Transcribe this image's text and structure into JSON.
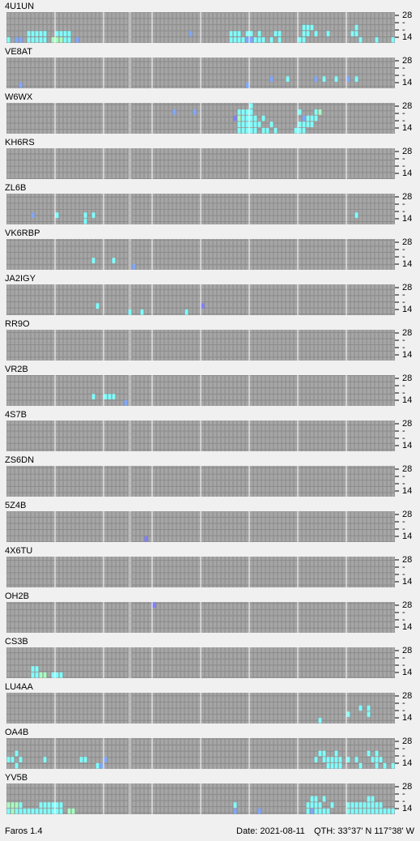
{
  "palette": {
    "c": "#80ffff",
    "b": "#80a8ff",
    "g": "#a8ffc0",
    "p": "#8080ff"
  },
  "band_labels": [
    "28",
    "-",
    "-",
    "14"
  ],
  "stations": [
    {
      "name": "4U1UN",
      "hits": [
        [
          5,
          3,
          "c"
        ],
        [
          6,
          3,
          "c"
        ],
        [
          7,
          3,
          "c"
        ],
        [
          8,
          3,
          "c"
        ],
        [
          9,
          3,
          "c"
        ],
        [
          12,
          3,
          "c"
        ],
        [
          13,
          3,
          "c"
        ],
        [
          14,
          3,
          "c"
        ],
        [
          15,
          3,
          "c"
        ],
        [
          0,
          4,
          "c"
        ],
        [
          2,
          4,
          "b"
        ],
        [
          3,
          4,
          "b"
        ],
        [
          5,
          4,
          "c"
        ],
        [
          6,
          4,
          "c"
        ],
        [
          7,
          4,
          "c"
        ],
        [
          8,
          4,
          "c"
        ],
        [
          9,
          4,
          "c"
        ],
        [
          11,
          4,
          "g"
        ],
        [
          12,
          4,
          "g"
        ],
        [
          13,
          4,
          "g"
        ],
        [
          14,
          4,
          "c"
        ],
        [
          15,
          4,
          "c"
        ],
        [
          17,
          4,
          "b"
        ],
        [
          45,
          3,
          "b"
        ],
        [
          55,
          3,
          "c"
        ],
        [
          56,
          3,
          "c"
        ],
        [
          57,
          3,
          "c"
        ],
        [
          59,
          3,
          "c"
        ],
        [
          60,
          3,
          "c"
        ],
        [
          62,
          3,
          "c"
        ],
        [
          66,
          3,
          "c"
        ],
        [
          67,
          3,
          "c"
        ],
        [
          55,
          4,
          "c"
        ],
        [
          56,
          4,
          "c"
        ],
        [
          57,
          4,
          "c"
        ],
        [
          58,
          4,
          "c"
        ],
        [
          59,
          4,
          "b"
        ],
        [
          60,
          4,
          "b"
        ],
        [
          61,
          4,
          "c"
        ],
        [
          62,
          4,
          "c"
        ],
        [
          63,
          4,
          "c"
        ],
        [
          65,
          4,
          "c"
        ],
        [
          67,
          4,
          "c"
        ],
        [
          73,
          2,
          "c"
        ],
        [
          74,
          2,
          "c"
        ],
        [
          75,
          2,
          "c"
        ],
        [
          73,
          3,
          "c"
        ],
        [
          74,
          3,
          "c"
        ],
        [
          76,
          3,
          "c"
        ],
        [
          79,
          3,
          "c"
        ],
        [
          72,
          4,
          "c"
        ],
        [
          73,
          4,
          "c"
        ],
        [
          86,
          2,
          "c"
        ],
        [
          85,
          3,
          "c"
        ],
        [
          86,
          3,
          "c"
        ],
        [
          87,
          4,
          "c"
        ],
        [
          91,
          4,
          "c"
        ],
        [
          95,
          4,
          "c"
        ]
      ]
    },
    {
      "name": "VE8AT",
      "hits": [
        [
          3,
          4,
          "b"
        ],
        [
          59,
          4,
          "b"
        ],
        [
          65,
          3,
          "b"
        ],
        [
          69,
          3,
          "c"
        ],
        [
          76,
          3,
          "b"
        ],
        [
          78,
          3,
          "c"
        ],
        [
          81,
          3,
          "c"
        ],
        [
          84,
          3,
          "b"
        ],
        [
          86,
          3,
          "c"
        ]
      ]
    },
    {
      "name": "W6WX",
      "hits": [
        [
          41,
          1,
          "b"
        ],
        [
          46,
          1,
          "b"
        ],
        [
          60,
          0,
          "c"
        ],
        [
          57,
          1,
          "c"
        ],
        [
          58,
          1,
          "c"
        ],
        [
          59,
          1,
          "c"
        ],
        [
          60,
          1,
          "c"
        ],
        [
          56,
          2,
          "p"
        ],
        [
          57,
          2,
          "g"
        ],
        [
          58,
          2,
          "c"
        ],
        [
          59,
          2,
          "c"
        ],
        [
          60,
          2,
          "c"
        ],
        [
          61,
          2,
          "c"
        ],
        [
          63,
          2,
          "c"
        ],
        [
          57,
          3,
          "c"
        ],
        [
          58,
          3,
          "c"
        ],
        [
          59,
          3,
          "c"
        ],
        [
          60,
          3,
          "c"
        ],
        [
          61,
          3,
          "c"
        ],
        [
          62,
          3,
          "c"
        ],
        [
          65,
          3,
          "c"
        ],
        [
          57,
          4,
          "c"
        ],
        [
          58,
          4,
          "c"
        ],
        [
          59,
          4,
          "c"
        ],
        [
          60,
          4,
          "c"
        ],
        [
          61,
          4,
          "c"
        ],
        [
          63,
          4,
          "c"
        ],
        [
          64,
          4,
          "c"
        ],
        [
          66,
          4,
          "c"
        ],
        [
          72,
          1,
          "c"
        ],
        [
          76,
          1,
          "c"
        ],
        [
          77,
          1,
          "g"
        ],
        [
          73,
          2,
          "b"
        ],
        [
          74,
          2,
          "c"
        ],
        [
          75,
          2,
          "c"
        ],
        [
          76,
          2,
          "c"
        ],
        [
          72,
          3,
          "c"
        ],
        [
          73,
          3,
          "c"
        ],
        [
          74,
          3,
          "c"
        ],
        [
          75,
          3,
          "c"
        ],
        [
          71,
          4,
          "c"
        ],
        [
          72,
          4,
          "c"
        ],
        [
          73,
          4,
          "c"
        ]
      ]
    },
    {
      "name": "KH6RS",
      "hits": []
    },
    {
      "name": "ZL6B",
      "hits": [
        [
          6,
          3,
          "b"
        ],
        [
          12,
          3,
          "c"
        ],
        [
          19,
          3,
          "c"
        ],
        [
          21,
          3,
          "c"
        ],
        [
          19,
          4,
          "c"
        ],
        [
          86,
          3,
          "c"
        ]
      ]
    },
    {
      "name": "VK6RBP",
      "hits": [
        [
          21,
          3,
          "c"
        ],
        [
          26,
          3,
          "c"
        ],
        [
          31,
          4,
          "b"
        ]
      ]
    },
    {
      "name": "JA2IGY",
      "hits": [
        [
          22,
          3,
          "c"
        ],
        [
          48,
          3,
          "p"
        ],
        [
          30,
          4,
          "c"
        ],
        [
          33,
          4,
          "c"
        ],
        [
          44,
          4,
          "c"
        ]
      ]
    },
    {
      "name": "RR9O",
      "hits": []
    },
    {
      "name": "VR2B",
      "hits": [
        [
          21,
          3,
          "c"
        ],
        [
          24,
          3,
          "c"
        ],
        [
          25,
          3,
          "c"
        ],
        [
          26,
          3,
          "c"
        ],
        [
          29,
          4,
          "b"
        ]
      ]
    },
    {
      "name": "4S7B",
      "hits": []
    },
    {
      "name": "ZS6DN",
      "hits": []
    },
    {
      "name": "5Z4B",
      "hits": [
        [
          34,
          4,
          "p"
        ]
      ]
    },
    {
      "name": "4X6TU",
      "hits": []
    },
    {
      "name": "OH2B",
      "hits": [
        [
          36,
          0,
          "p"
        ]
      ]
    },
    {
      "name": "CS3B",
      "hits": [
        [
          6,
          3,
          "c"
        ],
        [
          7,
          3,
          "c"
        ],
        [
          6,
          4,
          "c"
        ],
        [
          7,
          4,
          "c"
        ],
        [
          8,
          4,
          "g"
        ],
        [
          9,
          4,
          "g"
        ],
        [
          11,
          4,
          "c"
        ],
        [
          12,
          4,
          "c"
        ],
        [
          13,
          4,
          "c"
        ]
      ]
    },
    {
      "name": "LU4AA",
      "hits": [
        [
          87,
          2,
          "c"
        ],
        [
          89,
          2,
          "c"
        ],
        [
          84,
          3,
          "c"
        ],
        [
          89,
          3,
          "c"
        ],
        [
          77,
          4,
          "c"
        ]
      ]
    },
    {
      "name": "OA4B",
      "hits": [
        [
          2,
          2,
          "c"
        ],
        [
          0,
          3,
          "c"
        ],
        [
          1,
          3,
          "c"
        ],
        [
          3,
          3,
          "c"
        ],
        [
          9,
          3,
          "c"
        ],
        [
          18,
          3,
          "c"
        ],
        [
          19,
          3,
          "c"
        ],
        [
          24,
          3,
          "b"
        ],
        [
          2,
          4,
          "c"
        ],
        [
          22,
          4,
          "c"
        ],
        [
          23,
          4,
          "b"
        ],
        [
          77,
          2,
          "c"
        ],
        [
          78,
          2,
          "c"
        ],
        [
          81,
          2,
          "c"
        ],
        [
          89,
          2,
          "c"
        ],
        [
          91,
          2,
          "c"
        ],
        [
          76,
          3,
          "c"
        ],
        [
          78,
          3,
          "c"
        ],
        [
          79,
          3,
          "c"
        ],
        [
          80,
          3,
          "c"
        ],
        [
          81,
          3,
          "c"
        ],
        [
          82,
          3,
          "c"
        ],
        [
          84,
          3,
          "c"
        ],
        [
          86,
          3,
          "c"
        ],
        [
          90,
          3,
          "c"
        ],
        [
          91,
          3,
          "c"
        ],
        [
          92,
          3,
          "c"
        ],
        [
          79,
          4,
          "c"
        ],
        [
          80,
          4,
          "c"
        ],
        [
          81,
          4,
          "c"
        ],
        [
          82,
          4,
          "c"
        ],
        [
          87,
          4,
          "c"
        ],
        [
          91,
          4,
          "c"
        ],
        [
          93,
          4,
          "c"
        ],
        [
          95,
          4,
          "c"
        ]
      ]
    },
    {
      "name": "YV5B",
      "hits": [
        [
          0,
          3,
          "g"
        ],
        [
          1,
          3,
          "g"
        ],
        [
          2,
          3,
          "g"
        ],
        [
          3,
          3,
          "c"
        ],
        [
          8,
          3,
          "c"
        ],
        [
          9,
          3,
          "c"
        ],
        [
          10,
          3,
          "c"
        ],
        [
          11,
          3,
          "c"
        ],
        [
          12,
          3,
          "c"
        ],
        [
          13,
          3,
          "c"
        ],
        [
          0,
          4,
          "c"
        ],
        [
          1,
          4,
          "g"
        ],
        [
          2,
          4,
          "c"
        ],
        [
          3,
          4,
          "c"
        ],
        [
          4,
          4,
          "c"
        ],
        [
          5,
          4,
          "c"
        ],
        [
          6,
          4,
          "c"
        ],
        [
          7,
          4,
          "c"
        ],
        [
          8,
          4,
          "c"
        ],
        [
          9,
          4,
          "c"
        ],
        [
          10,
          4,
          "c"
        ],
        [
          11,
          4,
          "c"
        ],
        [
          12,
          4,
          "c"
        ],
        [
          13,
          4,
          "c"
        ],
        [
          15,
          4,
          "g"
        ],
        [
          16,
          4,
          "g"
        ],
        [
          56,
          3,
          "c"
        ],
        [
          56,
          4,
          "b"
        ],
        [
          62,
          4,
          "b"
        ],
        [
          75,
          2,
          "c"
        ],
        [
          76,
          2,
          "c"
        ],
        [
          78,
          2,
          "c"
        ],
        [
          89,
          2,
          "c"
        ],
        [
          90,
          2,
          "c"
        ],
        [
          74,
          3,
          "c"
        ],
        [
          75,
          3,
          "c"
        ],
        [
          76,
          3,
          "c"
        ],
        [
          77,
          3,
          "c"
        ],
        [
          80,
          3,
          "c"
        ],
        [
          84,
          3,
          "c"
        ],
        [
          85,
          3,
          "c"
        ],
        [
          86,
          3,
          "c"
        ],
        [
          87,
          3,
          "c"
        ],
        [
          88,
          3,
          "c"
        ],
        [
          89,
          3,
          "c"
        ],
        [
          90,
          3,
          "c"
        ],
        [
          91,
          3,
          "c"
        ],
        [
          92,
          3,
          "c"
        ],
        [
          74,
          4,
          "c"
        ],
        [
          75,
          4,
          "b"
        ],
        [
          76,
          4,
          "c"
        ],
        [
          77,
          4,
          "c"
        ],
        [
          78,
          4,
          "c"
        ],
        [
          79,
          4,
          "c"
        ],
        [
          84,
          4,
          "c"
        ],
        [
          85,
          4,
          "c"
        ],
        [
          86,
          4,
          "c"
        ],
        [
          87,
          4,
          "c"
        ],
        [
          88,
          4,
          "c"
        ],
        [
          89,
          4,
          "c"
        ],
        [
          90,
          4,
          "c"
        ],
        [
          91,
          4,
          "c"
        ],
        [
          92,
          4,
          "c"
        ],
        [
          93,
          4,
          "c"
        ],
        [
          94,
          4,
          "c"
        ],
        [
          95,
          4,
          "c"
        ]
      ]
    }
  ],
  "footer": {
    "app": "Faros 1.4",
    "date": "Date: 2021-08-11",
    "qth": "QTH: 33°37' N  117°38' W"
  }
}
